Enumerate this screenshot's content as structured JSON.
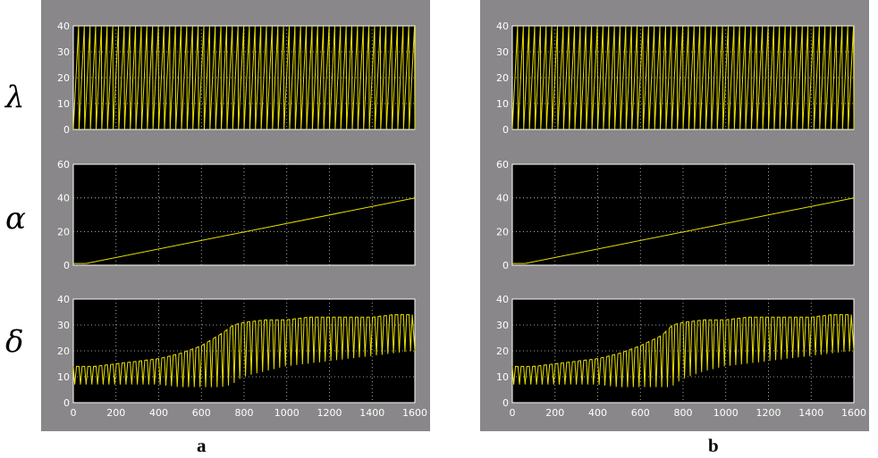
{
  "row_labels": [
    "λ",
    "α",
    "δ"
  ],
  "panel_captions": [
    "a",
    "b"
  ],
  "colors": {
    "background": "#898789",
    "plot": "#000000",
    "trace": "#e8e000",
    "grid": "#d0d0d0",
    "frame": "#ffffff"
  },
  "chart_data": [
    {
      "panel": "a",
      "axes": [
        {
          "row": "λ",
          "type": "line",
          "x_range": [
            0,
            1600
          ],
          "ylim": [
            0,
            40
          ],
          "yticks": [
            0,
            10,
            20,
            30,
            40
          ],
          "grid": true,
          "show_xticks": false,
          "pattern": "sawtooth",
          "cycles": 60,
          "ymin": 0,
          "ymax": 40
        },
        {
          "row": "α",
          "type": "line",
          "x_range": [
            0,
            1600
          ],
          "ylim": [
            0,
            60
          ],
          "yticks": [
            0,
            20,
            40,
            60
          ],
          "grid": true,
          "show_xticks": false,
          "pattern": "staircase",
          "x": [
            0,
            60,
            1600
          ],
          "y": [
            1,
            1,
            40
          ]
        },
        {
          "row": "δ",
          "type": "line",
          "x_range": [
            0,
            1600
          ],
          "ylim": [
            0,
            40
          ],
          "yticks": [
            0,
            10,
            20,
            30,
            40
          ],
          "grid": true,
          "show_xticks": true,
          "xticks": [
            0,
            200,
            400,
            600,
            800,
            1000,
            1200,
            1400,
            1600
          ],
          "pattern": "oscillation",
          "cycles": 60,
          "envelope_x": [
            0,
            100,
            200,
            300,
            400,
            500,
            600,
            700,
            750,
            800,
            900,
            1000,
            1100,
            1200,
            1300,
            1400,
            1500,
            1600
          ],
          "upper": [
            14,
            14,
            15,
            16,
            17,
            19,
            22,
            27,
            30,
            31,
            32,
            32,
            33,
            33,
            33,
            33,
            34,
            34
          ],
          "lower": [
            7,
            7,
            7,
            7,
            7,
            6,
            6,
            6,
            7,
            10,
            12,
            14,
            15,
            16,
            17,
            18,
            19,
            20
          ]
        }
      ]
    },
    {
      "panel": "b",
      "axes": [
        {
          "row": "λ",
          "type": "line",
          "x_range": [
            0,
            1600
          ],
          "ylim": [
            0,
            40
          ],
          "yticks": [
            0,
            10,
            20,
            30,
            40
          ],
          "grid": true,
          "show_xticks": false,
          "pattern": "sawtooth",
          "cycles": 60,
          "ymin": 0,
          "ymax": 40
        },
        {
          "row": "α",
          "type": "line",
          "x_range": [
            0,
            1600
          ],
          "ylim": [
            0,
            60
          ],
          "yticks": [
            0,
            20,
            40,
            60
          ],
          "grid": true,
          "show_xticks": false,
          "pattern": "staircase",
          "x": [
            0,
            60,
            1600
          ],
          "y": [
            1,
            1,
            40
          ]
        },
        {
          "row": "δ",
          "type": "line",
          "x_range": [
            0,
            1600
          ],
          "ylim": [
            0,
            40
          ],
          "yticks": [
            0,
            10,
            20,
            30,
            40
          ],
          "grid": true,
          "show_xticks": true,
          "xticks": [
            0,
            200,
            400,
            600,
            800,
            1000,
            1200,
            1400,
            1600
          ],
          "pattern": "oscillation",
          "cycles": 60,
          "envelope_x": [
            0,
            100,
            200,
            300,
            400,
            500,
            600,
            700,
            750,
            800,
            900,
            1000,
            1100,
            1200,
            1300,
            1400,
            1500,
            1600
          ],
          "upper": [
            14,
            14,
            15,
            16,
            17,
            19,
            22,
            26,
            30,
            31,
            32,
            32,
            33,
            33,
            33,
            33,
            34,
            34
          ],
          "lower": [
            7,
            7,
            7,
            7,
            7,
            6,
            6,
            6,
            6,
            9,
            12,
            14,
            15,
            16,
            17,
            18,
            19,
            20
          ]
        }
      ]
    }
  ]
}
